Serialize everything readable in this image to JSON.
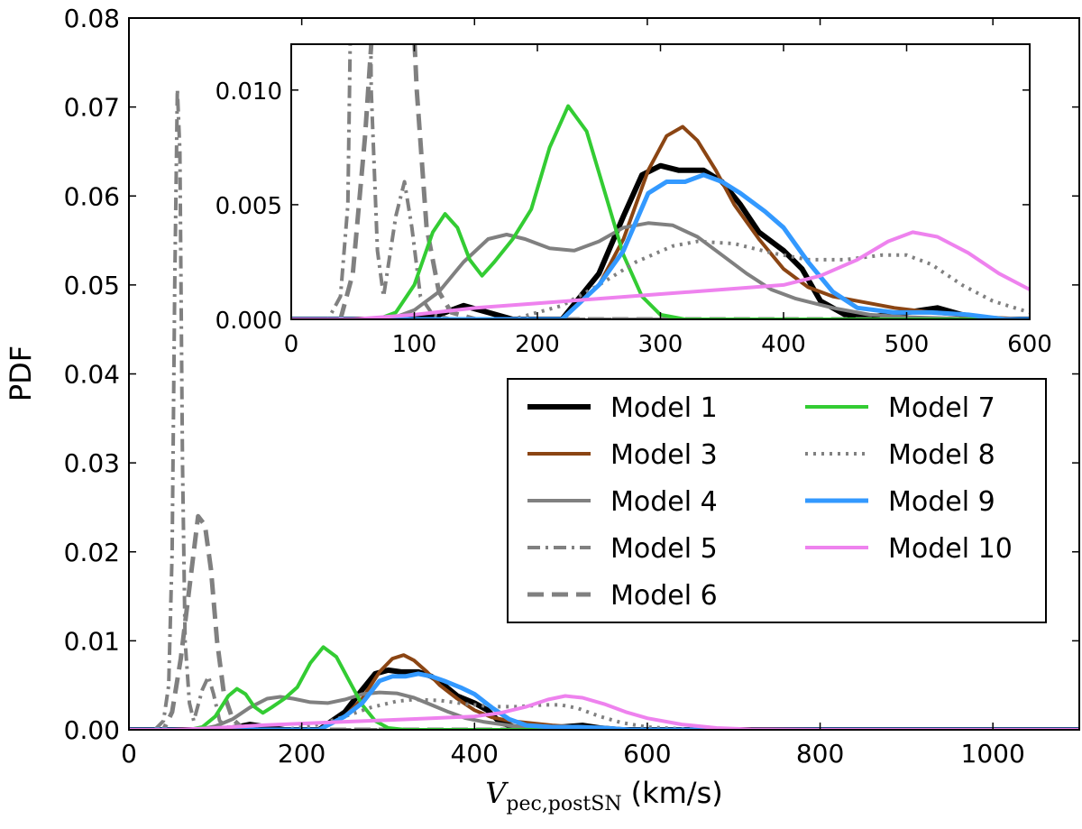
{
  "chart_data": {
    "type": "line",
    "ylabel": "PDF",
    "xlabel": {
      "symbol": "V",
      "subscript": "pec,postSN",
      "unit": "(km/s)"
    },
    "xlim": [
      0,
      1100
    ],
    "ylim": [
      0,
      0.08
    ],
    "xticks": [
      "0",
      "200",
      "400",
      "600",
      "800",
      "1000"
    ],
    "xtick_values": [
      0,
      200,
      400,
      600,
      800,
      1000
    ],
    "yticks": [
      "0.00",
      "0.01",
      "0.02",
      "0.03",
      "0.04",
      "0.05",
      "0.06",
      "0.07",
      "0.08"
    ],
    "ytick_values": [
      0,
      0.01,
      0.02,
      0.03,
      0.04,
      0.05,
      0.06,
      0.07,
      0.08
    ],
    "legend_position": "center-right",
    "series": [
      {
        "name": "Model 1",
        "color": "#000000",
        "style": "solid",
        "width": 6,
        "points": [
          [
            0,
            0
          ],
          [
            100,
            0
          ],
          [
            120,
            0.0002
          ],
          [
            140,
            0.0006
          ],
          [
            160,
            0.0003
          ],
          [
            180,
            0
          ],
          [
            220,
            0
          ],
          [
            250,
            0.002
          ],
          [
            270,
            0.0045
          ],
          [
            285,
            0.0063
          ],
          [
            300,
            0.0067
          ],
          [
            315,
            0.0065
          ],
          [
            335,
            0.0065
          ],
          [
            350,
            0.006
          ],
          [
            365,
            0.005
          ],
          [
            380,
            0.0038
          ],
          [
            400,
            0.003
          ],
          [
            415,
            0.0022
          ],
          [
            430,
            0.0008
          ],
          [
            450,
            0.0002
          ],
          [
            470,
            0.0001
          ],
          [
            500,
            0.0003
          ],
          [
            525,
            0.0005
          ],
          [
            545,
            0.0002
          ],
          [
            570,
            0
          ],
          [
            1100,
            0
          ]
        ]
      },
      {
        "name": "Model 3",
        "color": "#8b4513",
        "style": "solid",
        "width": 4,
        "points": [
          [
            0,
            0
          ],
          [
            220,
            0
          ],
          [
            250,
            0.0015
          ],
          [
            270,
            0.0035
          ],
          [
            290,
            0.0065
          ],
          [
            305,
            0.008
          ],
          [
            318,
            0.0084
          ],
          [
            330,
            0.0078
          ],
          [
            345,
            0.0065
          ],
          [
            360,
            0.005
          ],
          [
            380,
            0.0035
          ],
          [
            400,
            0.0022
          ],
          [
            420,
            0.0014
          ],
          [
            440,
            0.001
          ],
          [
            460,
            0.0008
          ],
          [
            490,
            0.0005
          ],
          [
            520,
            0.0003
          ],
          [
            560,
            0.0001
          ],
          [
            600,
            0
          ],
          [
            1100,
            0
          ]
        ]
      },
      {
        "name": "Model 4",
        "color": "#808080",
        "style": "solid",
        "width": 4,
        "points": [
          [
            0,
            0
          ],
          [
            80,
            0
          ],
          [
            100,
            0.0004
          ],
          [
            120,
            0.0012
          ],
          [
            140,
            0.0025
          ],
          [
            160,
            0.0035
          ],
          [
            175,
            0.0037
          ],
          [
            190,
            0.0035
          ],
          [
            210,
            0.0031
          ],
          [
            230,
            0.003
          ],
          [
            250,
            0.0034
          ],
          [
            270,
            0.004
          ],
          [
            290,
            0.0042
          ],
          [
            310,
            0.0041
          ],
          [
            330,
            0.0036
          ],
          [
            350,
            0.0028
          ],
          [
            370,
            0.002
          ],
          [
            390,
            0.0013
          ],
          [
            410,
            0.0009
          ],
          [
            440,
            0.0005
          ],
          [
            470,
            0.0002
          ],
          [
            500,
            0.0001
          ],
          [
            560,
            0
          ],
          [
            1100,
            0
          ]
        ]
      },
      {
        "name": "Model 5",
        "color": "#808080",
        "style": "dashdot",
        "width": 4,
        "points": [
          [
            0,
            0
          ],
          [
            30,
            0
          ],
          [
            40,
            0.001
          ],
          [
            46,
            0.005
          ],
          [
            50,
            0.02
          ],
          [
            53,
            0.05
          ],
          [
            56,
            0.072
          ],
          [
            59,
            0.065
          ],
          [
            62,
            0.03
          ],
          [
            65,
            0.01
          ],
          [
            70,
            0.003
          ],
          [
            75,
            0.001
          ],
          [
            85,
            0.0045
          ],
          [
            92,
            0.006
          ],
          [
            98,
            0.004
          ],
          [
            105,
            0.001
          ],
          [
            115,
            0.0002
          ],
          [
            130,
            0
          ],
          [
            1100,
            0
          ]
        ]
      },
      {
        "name": "Model 6",
        "color": "#808080",
        "style": "dashed",
        "width": 5,
        "points": [
          [
            0,
            0
          ],
          [
            40,
            0
          ],
          [
            50,
            0.002
          ],
          [
            60,
            0.008
          ],
          [
            70,
            0.016
          ],
          [
            80,
            0.024
          ],
          [
            88,
            0.023
          ],
          [
            95,
            0.018
          ],
          [
            102,
            0.01
          ],
          [
            110,
            0.004
          ],
          [
            120,
            0.0012
          ],
          [
            130,
            0.0003
          ],
          [
            150,
            0
          ],
          [
            1100,
            0
          ]
        ]
      },
      {
        "name": "Model 7",
        "color": "#33cc33",
        "style": "solid",
        "width": 4,
        "points": [
          [
            0,
            0
          ],
          [
            70,
            0
          ],
          [
            85,
            0.0003
          ],
          [
            100,
            0.0015
          ],
          [
            115,
            0.0038
          ],
          [
            125,
            0.0046
          ],
          [
            135,
            0.004
          ],
          [
            145,
            0.0026
          ],
          [
            155,
            0.0019
          ],
          [
            165,
            0.0025
          ],
          [
            180,
            0.0035
          ],
          [
            195,
            0.0048
          ],
          [
            210,
            0.0075
          ],
          [
            225,
            0.0093
          ],
          [
            240,
            0.0082
          ],
          [
            255,
            0.0055
          ],
          [
            270,
            0.0028
          ],
          [
            285,
            0.001
          ],
          [
            300,
            0.0002
          ],
          [
            320,
            0
          ],
          [
            1100,
            0
          ]
        ]
      },
      {
        "name": "Model 8",
        "color": "#808080",
        "style": "dotted",
        "width": 4,
        "points": [
          [
            0,
            0
          ],
          [
            180,
            0
          ],
          [
            220,
            0.0006
          ],
          [
            250,
            0.0015
          ],
          [
            280,
            0.0025
          ],
          [
            310,
            0.0032
          ],
          [
            330,
            0.0034
          ],
          [
            360,
            0.0033
          ],
          [
            390,
            0.0029
          ],
          [
            420,
            0.0026
          ],
          [
            450,
            0.0026
          ],
          [
            480,
            0.0028
          ],
          [
            500,
            0.0028
          ],
          [
            520,
            0.0024
          ],
          [
            545,
            0.0015
          ],
          [
            570,
            0.0008
          ],
          [
            600,
            0.0003
          ],
          [
            640,
            0.0001
          ],
          [
            700,
            0
          ],
          [
            1100,
            0
          ]
        ]
      },
      {
        "name": "Model 9",
        "color": "#3399ff",
        "style": "solid",
        "width": 5,
        "points": [
          [
            0,
            0
          ],
          [
            220,
            0
          ],
          [
            250,
            0.0015
          ],
          [
            270,
            0.003
          ],
          [
            290,
            0.0055
          ],
          [
            305,
            0.006
          ],
          [
            320,
            0.006
          ],
          [
            335,
            0.0063
          ],
          [
            350,
            0.006
          ],
          [
            365,
            0.0055
          ],
          [
            385,
            0.0047
          ],
          [
            400,
            0.004
          ],
          [
            420,
            0.0025
          ],
          [
            440,
            0.0012
          ],
          [
            460,
            0.0005
          ],
          [
            490,
            0.0003
          ],
          [
            520,
            0.0003
          ],
          [
            550,
            0.0002
          ],
          [
            580,
            0
          ],
          [
            1100,
            0
          ]
        ]
      },
      {
        "name": "Model 10",
        "color": "#ee82ee",
        "style": "solid",
        "width": 4,
        "points": [
          [
            0,
            0
          ],
          [
            50,
            0
          ],
          [
            100,
            0.0002
          ],
          [
            150,
            0.0005
          ],
          [
            200,
            0.0007
          ],
          [
            250,
            0.0009
          ],
          [
            300,
            0.0011
          ],
          [
            350,
            0.0013
          ],
          [
            400,
            0.0015
          ],
          [
            430,
            0.0019
          ],
          [
            460,
            0.0026
          ],
          [
            485,
            0.0034
          ],
          [
            505,
            0.0038
          ],
          [
            525,
            0.0036
          ],
          [
            550,
            0.0029
          ],
          [
            575,
            0.002
          ],
          [
            600,
            0.0013
          ],
          [
            640,
            0.0006
          ],
          [
            680,
            0.0002
          ],
          [
            720,
            5e-05
          ],
          [
            800,
            0
          ],
          [
            1100,
            0
          ]
        ]
      }
    ],
    "inset": {
      "xlim": [
        0,
        600
      ],
      "ylim": [
        0,
        0.012
      ],
      "xticks": [
        "0",
        "100",
        "200",
        "300",
        "400",
        "500",
        "600"
      ],
      "xtick_values": [
        0,
        100,
        200,
        300,
        400,
        500,
        600
      ],
      "yticks": [
        "0.000",
        "0.005",
        "0.010"
      ],
      "ytick_values": [
        0,
        0.005,
        0.01
      ]
    }
  }
}
